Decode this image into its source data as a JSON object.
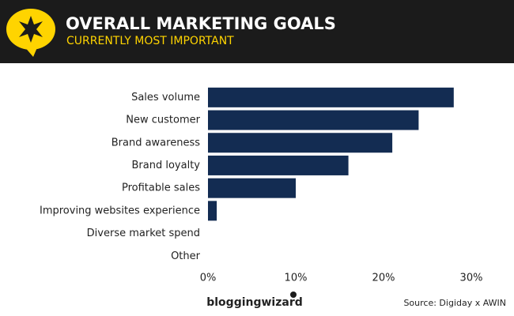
{
  "chart_data": {
    "type": "bar",
    "orientation": "horizontal",
    "title": "OVERALL MARKETING GOALS",
    "subtitle": "CURRENTLY MOST IMPORTANT",
    "categories": [
      "Sales volume",
      "New customer",
      "Brand awareness",
      "Brand loyalty",
      "Profitable sales",
      "Improving websites experience",
      "Diverse market spend",
      "Other"
    ],
    "values": [
      28,
      24,
      21,
      16,
      10,
      1,
      0,
      0
    ],
    "color": "#132c52",
    "xlim": [
      0,
      30
    ],
    "xticks": [
      {
        "value": 0,
        "label": "0%"
      },
      {
        "value": 10,
        "label": "10%"
      },
      {
        "value": 20,
        "label": "20%"
      },
      {
        "value": 30,
        "label": "30%"
      }
    ],
    "logo": "bloggingwizard",
    "source": "Source: Digiday x AWIN"
  }
}
